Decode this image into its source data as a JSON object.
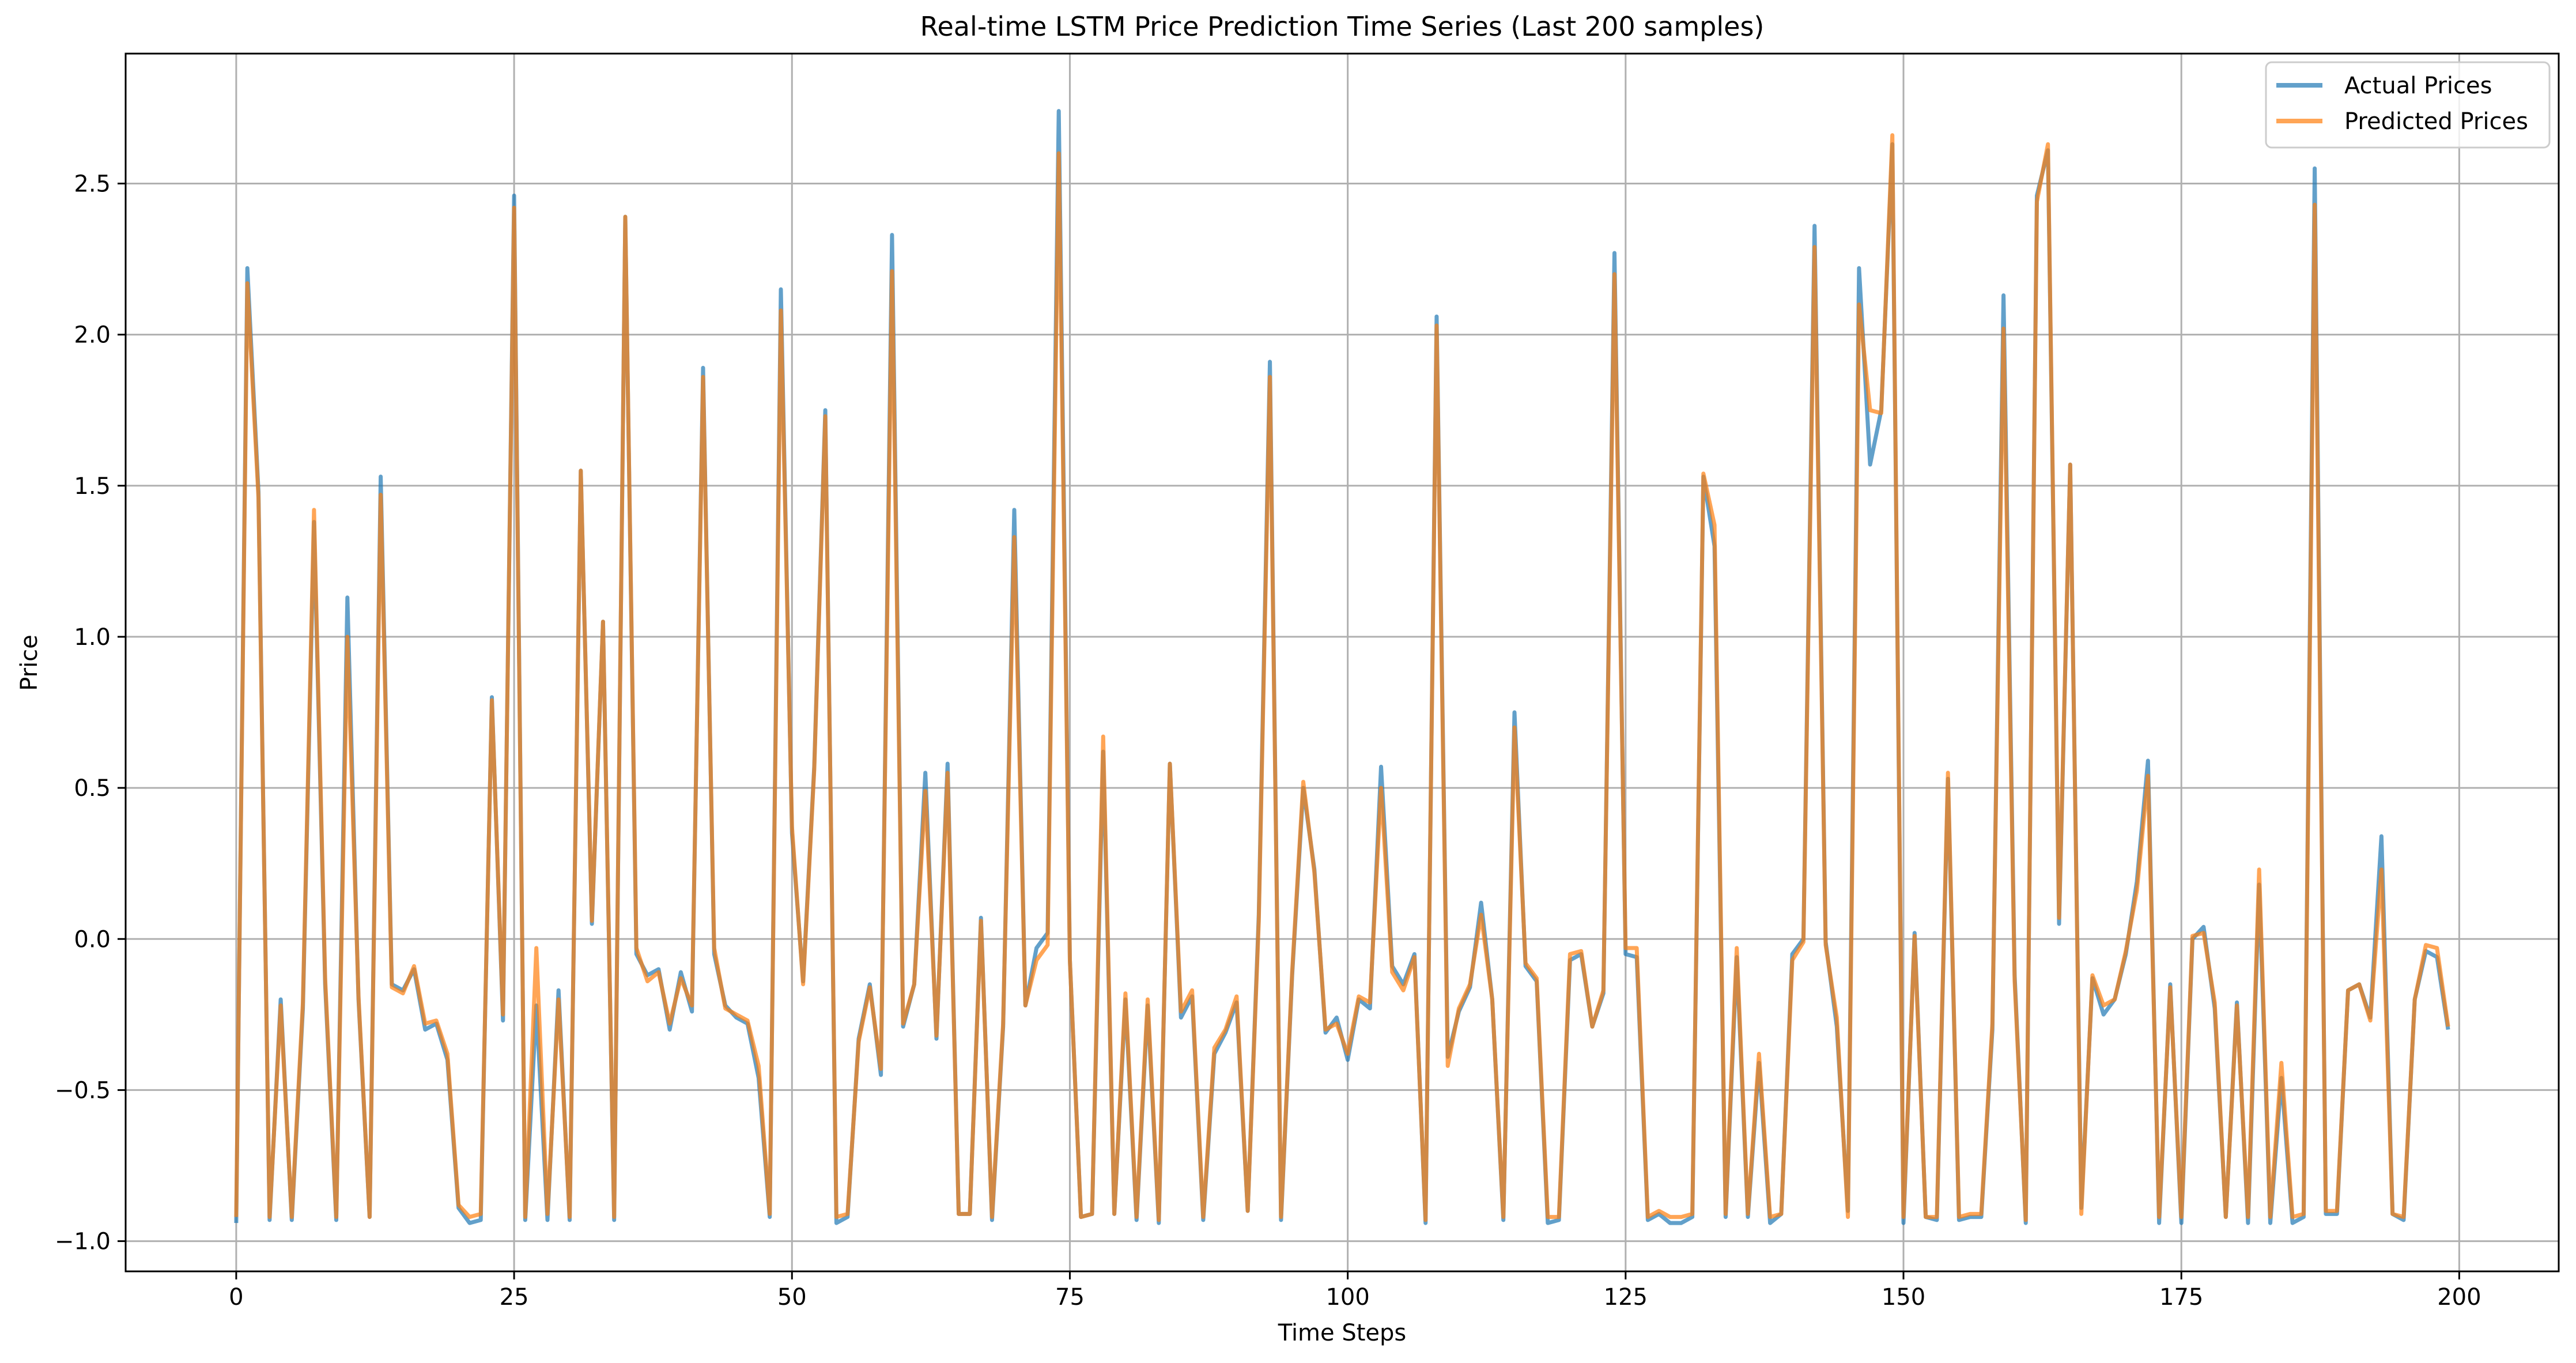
{
  "chart_data": {
    "type": "line",
    "title": "Real-time LSTM Price Prediction Time Series (Last 200 samples)",
    "xlabel": "Time Steps",
    "ylabel": "Price",
    "xlim": [
      -9.95,
      208.95
    ],
    "ylim": [
      -1.1,
      2.93
    ],
    "xticks": [
      0,
      25,
      50,
      75,
      100,
      125,
      150,
      175,
      200
    ],
    "xtick_labels": [
      "0",
      "25",
      "50",
      "75",
      "100",
      "125",
      "150",
      "175",
      "200"
    ],
    "yticks": [
      -1.0,
      -0.5,
      0.0,
      0.5,
      1.0,
      1.5,
      2.0,
      2.5
    ],
    "ytick_labels": [
      "−1.0",
      "−0.5",
      "0.0",
      "0.5",
      "1.0",
      "1.5",
      "2.0",
      "2.5"
    ],
    "grid": true,
    "legend_position": "top-right",
    "series": [
      {
        "name": "Actual Prices",
        "color": "#1f77b4",
        "values": [
          -0.94,
          2.22,
          1.48,
          -0.93,
          -0.2,
          -0.93,
          -0.23,
          1.38,
          -0.15,
          -0.93,
          1.13,
          -0.2,
          -0.92,
          1.53,
          -0.15,
          -0.17,
          -0.1,
          -0.3,
          -0.28,
          -0.4,
          -0.89,
          -0.94,
          -0.93,
          0.8,
          -0.27,
          2.46,
          -0.93,
          -0.22,
          -0.93,
          -0.17,
          -0.93,
          1.55,
          0.05,
          1.05,
          -0.93,
          2.39,
          -0.05,
          -0.12,
          -0.1,
          -0.3,
          -0.11,
          -0.24,
          1.89,
          -0.05,
          -0.22,
          -0.26,
          -0.28,
          -0.46,
          -0.92,
          2.15,
          0.35,
          -0.14,
          0.57,
          1.75,
          -0.94,
          -0.92,
          -0.33,
          -0.15,
          -0.45,
          2.33,
          -0.29,
          -0.15,
          0.55,
          -0.33,
          0.58,
          -0.91,
          -0.91,
          0.07,
          -0.93,
          -0.29,
          1.42,
          -0.22,
          -0.03,
          0.02,
          2.74,
          -0.07,
          -0.92,
          -0.91,
          0.62,
          -0.91,
          -0.2,
          -0.93,
          -0.22,
          -0.94,
          0.58,
          -0.26,
          -0.19,
          -0.93,
          -0.38,
          -0.31,
          -0.21,
          -0.9,
          0.08,
          1.91,
          -0.93,
          -0.12,
          0.5,
          0.23,
          -0.31,
          -0.26,
          -0.4,
          -0.2,
          -0.23,
          0.57,
          -0.09,
          -0.15,
          -0.05,
          -0.94,
          2.06,
          -0.39,
          -0.24,
          -0.16,
          0.12,
          -0.2,
          -0.93,
          0.75,
          -0.09,
          -0.14,
          -0.94,
          -0.93,
          -0.07,
          -0.05,
          -0.29,
          -0.18,
          2.27,
          -0.05,
          -0.06,
          -0.93,
          -0.91,
          -0.94,
          -0.94,
          -0.92,
          1.53,
          1.3,
          -0.92,
          -0.06,
          -0.92,
          -0.41,
          -0.94,
          -0.91,
          -0.05,
          0.0,
          2.36,
          -0.01,
          -0.29,
          -0.9,
          2.22,
          1.57,
          1.75,
          2.63,
          -0.94,
          0.02,
          -0.92,
          -0.93,
          0.53,
          -0.93,
          -0.92,
          -0.92,
          -0.3,
          2.13,
          -0.12,
          -0.94,
          2.46,
          2.61,
          0.05,
          1.57,
          -0.89,
          -0.13,
          -0.25,
          -0.2,
          -0.05,
          0.19,
          0.59,
          -0.94,
          -0.15,
          -0.94,
          0.0,
          0.04,
          -0.23,
          -0.92,
          -0.21,
          -0.94,
          0.18,
          -0.94,
          -0.46,
          -0.94,
          -0.92,
          2.55,
          -0.91,
          -0.91,
          -0.17,
          -0.15,
          -0.26,
          0.34,
          -0.91,
          -0.93,
          -0.2,
          -0.04,
          -0.06,
          -0.3
        ]
      },
      {
        "name": "Predicted Prices",
        "color": "#ff7f0e",
        "values": [
          -0.92,
          2.17,
          1.46,
          -0.92,
          -0.22,
          -0.92,
          -0.21,
          1.42,
          -0.13,
          -0.92,
          1.0,
          -0.19,
          -0.92,
          1.47,
          -0.16,
          -0.18,
          -0.09,
          -0.28,
          -0.27,
          -0.38,
          -0.88,
          -0.92,
          -0.91,
          0.79,
          -0.25,
          2.42,
          -0.92,
          -0.03,
          -0.91,
          -0.2,
          -0.92,
          1.55,
          0.06,
          1.05,
          -0.92,
          2.39,
          -0.03,
          -0.14,
          -0.11,
          -0.28,
          -0.13,
          -0.22,
          1.86,
          -0.03,
          -0.23,
          -0.25,
          -0.27,
          -0.42,
          -0.91,
          2.08,
          0.37,
          -0.15,
          0.56,
          1.73,
          -0.92,
          -0.91,
          -0.34,
          -0.16,
          -0.43,
          2.21,
          -0.28,
          -0.15,
          0.49,
          -0.32,
          0.55,
          -0.91,
          -0.91,
          0.06,
          -0.92,
          -0.28,
          1.33,
          -0.22,
          -0.07,
          -0.02,
          2.6,
          -0.07,
          -0.92,
          -0.91,
          0.67,
          -0.91,
          -0.18,
          -0.92,
          -0.2,
          -0.93,
          0.58,
          -0.24,
          -0.17,
          -0.92,
          -0.36,
          -0.3,
          -0.19,
          -0.9,
          0.06,
          1.86,
          -0.92,
          -0.11,
          0.52,
          0.22,
          -0.3,
          -0.28,
          -0.38,
          -0.19,
          -0.21,
          0.5,
          -0.11,
          -0.17,
          -0.06,
          -0.93,
          2.03,
          -0.42,
          -0.23,
          -0.15,
          0.08,
          -0.2,
          -0.92,
          0.7,
          -0.08,
          -0.13,
          -0.92,
          -0.92,
          -0.05,
          -0.04,
          -0.29,
          -0.17,
          2.2,
          -0.03,
          -0.03,
          -0.92,
          -0.9,
          -0.92,
          -0.92,
          -0.91,
          1.54,
          1.37,
          -0.91,
          -0.03,
          -0.91,
          -0.38,
          -0.92,
          -0.91,
          -0.07,
          -0.01,
          2.29,
          -0.02,
          -0.26,
          -0.92,
          2.1,
          1.75,
          1.74,
          2.66,
          -0.92,
          0.01,
          -0.92,
          -0.92,
          0.55,
          -0.92,
          -0.91,
          -0.91,
          -0.28,
          2.02,
          -0.14,
          -0.93,
          2.44,
          2.63,
          0.07,
          1.57,
          -0.91,
          -0.12,
          -0.22,
          -0.2,
          -0.04,
          0.16,
          0.54,
          -0.92,
          -0.16,
          -0.92,
          0.01,
          0.02,
          -0.21,
          -0.92,
          -0.22,
          -0.92,
          0.23,
          -0.92,
          -0.41,
          -0.92,
          -0.91,
          2.43,
          -0.9,
          -0.9,
          -0.17,
          -0.15,
          -0.27,
          0.23,
          -0.91,
          -0.92,
          -0.2,
          -0.02,
          -0.03,
          -0.29
        ]
      }
    ]
  }
}
